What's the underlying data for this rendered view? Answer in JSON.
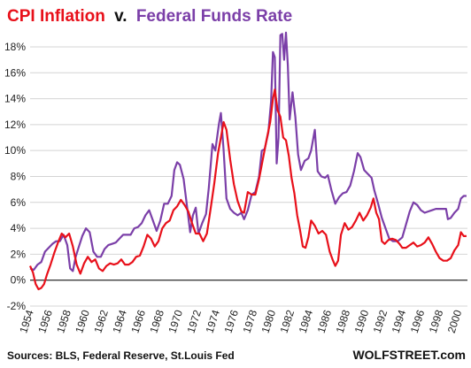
{
  "chart_data": {
    "type": "line",
    "title_part1": "CPI Inflation",
    "title_part2": "v.",
    "title_part3": "Federal Funds Rate",
    "source": "Sources: BLS, Federal Reserve, St.Louis Fed",
    "watermark": "WOLFSTREET.com",
    "y_ticks": [
      "-2%",
      "0%",
      "2%",
      "4%",
      "6%",
      "8%",
      "10%",
      "12%",
      "14%",
      "16%",
      "18%"
    ],
    "x_ticks": [
      "1954",
      "1956",
      "1958",
      "1960",
      "1962",
      "1964",
      "1966",
      "1968",
      "1970",
      "1972",
      "1974",
      "1976",
      "1978",
      "1980",
      "1982",
      "1984",
      "1986",
      "1988",
      "1990",
      "1992",
      "1994",
      "1996",
      "1998",
      "2000"
    ],
    "ylim": [
      -2,
      19.5
    ],
    "xlim": [
      1954,
      2001
    ],
    "grid": true,
    "series": [
      {
        "name": "CPI Inflation",
        "color": "#e8101a",
        "points": [
          [
            1954.0,
            1.1
          ],
          [
            1954.3,
            0.6
          ],
          [
            1954.6,
            -0.3
          ],
          [
            1954.9,
            -0.7
          ],
          [
            1955.2,
            -0.6
          ],
          [
            1955.5,
            -0.3
          ],
          [
            1955.8,
            0.4
          ],
          [
            1956.2,
            1.2
          ],
          [
            1956.6,
            2.1
          ],
          [
            1957.0,
            2.9
          ],
          [
            1957.4,
            3.6
          ],
          [
            1957.8,
            3.3
          ],
          [
            1958.2,
            3.6
          ],
          [
            1958.6,
            2.6
          ],
          [
            1959.0,
            1.2
          ],
          [
            1959.4,
            0.5
          ],
          [
            1959.8,
            1.3
          ],
          [
            1960.2,
            1.8
          ],
          [
            1960.6,
            1.4
          ],
          [
            1961.0,
            1.6
          ],
          [
            1961.4,
            0.9
          ],
          [
            1961.8,
            0.7
          ],
          [
            1962.2,
            1.1
          ],
          [
            1962.6,
            1.3
          ],
          [
            1963.0,
            1.2
          ],
          [
            1963.4,
            1.3
          ],
          [
            1963.8,
            1.6
          ],
          [
            1964.2,
            1.2
          ],
          [
            1964.6,
            1.2
          ],
          [
            1965.0,
            1.4
          ],
          [
            1965.4,
            1.8
          ],
          [
            1965.8,
            1.9
          ],
          [
            1966.2,
            2.6
          ],
          [
            1966.6,
            3.5
          ],
          [
            1967.0,
            3.2
          ],
          [
            1967.4,
            2.6
          ],
          [
            1967.8,
            3.0
          ],
          [
            1968.2,
            4.0
          ],
          [
            1968.6,
            4.4
          ],
          [
            1969.0,
            4.6
          ],
          [
            1969.4,
            5.4
          ],
          [
            1969.8,
            5.7
          ],
          [
            1970.2,
            6.2
          ],
          [
            1970.6,
            5.8
          ],
          [
            1971.0,
            5.3
          ],
          [
            1971.4,
            4.4
          ],
          [
            1971.8,
            3.6
          ],
          [
            1972.2,
            3.6
          ],
          [
            1972.6,
            3.0
          ],
          [
            1973.0,
            3.6
          ],
          [
            1973.4,
            5.5
          ],
          [
            1973.8,
            7.5
          ],
          [
            1974.2,
            9.8
          ],
          [
            1974.5,
            11.0
          ],
          [
            1974.8,
            12.2
          ],
          [
            1975.1,
            11.6
          ],
          [
            1975.5,
            9.3
          ],
          [
            1975.9,
            7.4
          ],
          [
            1976.3,
            6.1
          ],
          [
            1976.7,
            5.3
          ],
          [
            1977.0,
            5.2
          ],
          [
            1977.4,
            6.8
          ],
          [
            1977.8,
            6.6
          ],
          [
            1978.2,
            6.6
          ],
          [
            1978.6,
            7.8
          ],
          [
            1979.0,
            9.3
          ],
          [
            1979.4,
            10.8
          ],
          [
            1979.8,
            12.2
          ],
          [
            1980.1,
            14.0
          ],
          [
            1980.3,
            14.7
          ],
          [
            1980.6,
            13.1
          ],
          [
            1980.9,
            12.6
          ],
          [
            1981.2,
            11.0
          ],
          [
            1981.5,
            10.8
          ],
          [
            1981.8,
            9.6
          ],
          [
            1982.1,
            7.9
          ],
          [
            1982.4,
            6.7
          ],
          [
            1982.7,
            5.0
          ],
          [
            1983.0,
            3.9
          ],
          [
            1983.3,
            2.6
          ],
          [
            1983.6,
            2.5
          ],
          [
            1983.9,
            3.3
          ],
          [
            1984.2,
            4.6
          ],
          [
            1984.6,
            4.2
          ],
          [
            1985.0,
            3.6
          ],
          [
            1985.4,
            3.8
          ],
          [
            1985.8,
            3.5
          ],
          [
            1986.2,
            2.2
          ],
          [
            1986.5,
            1.6
          ],
          [
            1986.8,
            1.1
          ],
          [
            1987.1,
            1.5
          ],
          [
            1987.4,
            3.5
          ],
          [
            1987.8,
            4.4
          ],
          [
            1988.2,
            3.9
          ],
          [
            1988.6,
            4.1
          ],
          [
            1989.0,
            4.6
          ],
          [
            1989.4,
            5.2
          ],
          [
            1989.8,
            4.6
          ],
          [
            1990.2,
            5.0
          ],
          [
            1990.6,
            5.6
          ],
          [
            1990.9,
            6.3
          ],
          [
            1991.2,
            5.2
          ],
          [
            1991.5,
            4.7
          ],
          [
            1991.8,
            3.0
          ],
          [
            1992.1,
            2.8
          ],
          [
            1992.5,
            3.1
          ],
          [
            1992.9,
            3.2
          ],
          [
            1993.3,
            3.1
          ],
          [
            1993.7,
            2.8
          ],
          [
            1994.0,
            2.5
          ],
          [
            1994.4,
            2.5
          ],
          [
            1994.8,
            2.7
          ],
          [
            1995.2,
            2.9
          ],
          [
            1995.6,
            2.6
          ],
          [
            1996.0,
            2.7
          ],
          [
            1996.4,
            2.9
          ],
          [
            1996.8,
            3.3
          ],
          [
            1997.2,
            2.8
          ],
          [
            1997.6,
            2.2
          ],
          [
            1998.0,
            1.7
          ],
          [
            1998.4,
            1.5
          ],
          [
            1998.8,
            1.5
          ],
          [
            1999.2,
            1.7
          ],
          [
            1999.6,
            2.3
          ],
          [
            2000.0,
            2.7
          ],
          [
            2000.3,
            3.7
          ],
          [
            2000.6,
            3.4
          ],
          [
            2000.9,
            3.4
          ]
        ]
      },
      {
        "name": "Federal Funds Rate",
        "color": "#7b3fa8",
        "points": [
          [
            1954.0,
            0.9
          ],
          [
            1954.4,
            0.8
          ],
          [
            1954.8,
            1.2
          ],
          [
            1955.2,
            1.4
          ],
          [
            1955.6,
            2.2
          ],
          [
            1956.0,
            2.5
          ],
          [
            1956.4,
            2.8
          ],
          [
            1956.8,
            3.0
          ],
          [
            1957.2,
            3.0
          ],
          [
            1957.6,
            3.5
          ],
          [
            1958.0,
            2.7
          ],
          [
            1958.3,
            0.9
          ],
          [
            1958.6,
            0.7
          ],
          [
            1958.9,
            1.8
          ],
          [
            1959.2,
            2.5
          ],
          [
            1959.6,
            3.4
          ],
          [
            1960.0,
            4.0
          ],
          [
            1960.4,
            3.7
          ],
          [
            1960.8,
            2.2
          ],
          [
            1961.2,
            1.8
          ],
          [
            1961.6,
            1.8
          ],
          [
            1962.0,
            2.4
          ],
          [
            1962.4,
            2.7
          ],
          [
            1962.8,
            2.8
          ],
          [
            1963.2,
            2.9
          ],
          [
            1963.6,
            3.2
          ],
          [
            1964.0,
            3.5
          ],
          [
            1964.4,
            3.5
          ],
          [
            1964.8,
            3.5
          ],
          [
            1965.2,
            4.0
          ],
          [
            1965.6,
            4.1
          ],
          [
            1966.0,
            4.4
          ],
          [
            1966.4,
            5.0
          ],
          [
            1966.8,
            5.4
          ],
          [
            1967.2,
            4.6
          ],
          [
            1967.6,
            3.8
          ],
          [
            1968.0,
            4.6
          ],
          [
            1968.4,
            5.9
          ],
          [
            1968.8,
            5.9
          ],
          [
            1969.2,
            6.5
          ],
          [
            1969.5,
            8.5
          ],
          [
            1969.8,
            9.1
          ],
          [
            1970.1,
            8.9
          ],
          [
            1970.5,
            7.8
          ],
          [
            1970.9,
            5.5
          ],
          [
            1971.2,
            3.7
          ],
          [
            1971.5,
            5.0
          ],
          [
            1971.8,
            5.6
          ],
          [
            1972.1,
            3.6
          ],
          [
            1972.5,
            4.4
          ],
          [
            1972.9,
            5.1
          ],
          [
            1973.2,
            7.1
          ],
          [
            1973.6,
            10.5
          ],
          [
            1973.9,
            10.0
          ],
          [
            1974.3,
            12.1
          ],
          [
            1974.5,
            12.9
          ],
          [
            1974.8,
            10.0
          ],
          [
            1975.1,
            6.3
          ],
          [
            1975.5,
            5.5
          ],
          [
            1975.9,
            5.2
          ],
          [
            1976.3,
            5.0
          ],
          [
            1976.7,
            5.2
          ],
          [
            1977.0,
            4.7
          ],
          [
            1977.4,
            5.4
          ],
          [
            1977.8,
            6.6
          ],
          [
            1978.2,
            6.8
          ],
          [
            1978.6,
            8.0
          ],
          [
            1978.9,
            10.0
          ],
          [
            1979.2,
            10.1
          ],
          [
            1979.6,
            11.4
          ],
          [
            1979.9,
            13.8
          ],
          [
            1980.1,
            17.6
          ],
          [
            1980.3,
            17.2
          ],
          [
            1980.5,
            9.0
          ],
          [
            1980.7,
            11.0
          ],
          [
            1980.9,
            18.9
          ],
          [
            1981.1,
            19.0
          ],
          [
            1981.3,
            17.0
          ],
          [
            1981.5,
            19.1
          ],
          [
            1981.7,
            16.6
          ],
          [
            1981.9,
            12.4
          ],
          [
            1982.2,
            14.5
          ],
          [
            1982.5,
            12.6
          ],
          [
            1982.8,
            9.7
          ],
          [
            1983.1,
            8.5
          ],
          [
            1983.5,
            9.2
          ],
          [
            1983.9,
            9.4
          ],
          [
            1984.2,
            10.0
          ],
          [
            1984.6,
            11.6
          ],
          [
            1984.9,
            8.4
          ],
          [
            1985.3,
            8.0
          ],
          [
            1985.7,
            7.9
          ],
          [
            1986.0,
            8.1
          ],
          [
            1986.4,
            6.9
          ],
          [
            1986.8,
            5.9
          ],
          [
            1987.2,
            6.4
          ],
          [
            1987.6,
            6.7
          ],
          [
            1988.0,
            6.8
          ],
          [
            1988.4,
            7.3
          ],
          [
            1988.8,
            8.4
          ],
          [
            1989.2,
            9.8
          ],
          [
            1989.5,
            9.5
          ],
          [
            1989.9,
            8.5
          ],
          [
            1990.3,
            8.2
          ],
          [
            1990.7,
            7.9
          ],
          [
            1991.0,
            6.9
          ],
          [
            1991.4,
            5.9
          ],
          [
            1991.8,
            4.8
          ],
          [
            1992.2,
            4.0
          ],
          [
            1992.6,
            3.2
          ],
          [
            1993.0,
            3.0
          ],
          [
            1993.5,
            3.0
          ],
          [
            1994.0,
            3.3
          ],
          [
            1994.4,
            4.3
          ],
          [
            1994.8,
            5.3
          ],
          [
            1995.2,
            6.0
          ],
          [
            1995.6,
            5.8
          ],
          [
            1996.0,
            5.4
          ],
          [
            1996.4,
            5.2
          ],
          [
            1996.8,
            5.3
          ],
          [
            1997.2,
            5.4
          ],
          [
            1997.6,
            5.5
          ],
          [
            1998.0,
            5.5
          ],
          [
            1998.4,
            5.5
          ],
          [
            1998.7,
            5.5
          ],
          [
            1998.9,
            4.7
          ],
          [
            1999.2,
            4.8
          ],
          [
            1999.6,
            5.2
          ],
          [
            2000.0,
            5.5
          ],
          [
            2000.3,
            6.3
          ],
          [
            2000.6,
            6.5
          ],
          [
            2000.9,
            6.5
          ]
        ]
      }
    ]
  }
}
